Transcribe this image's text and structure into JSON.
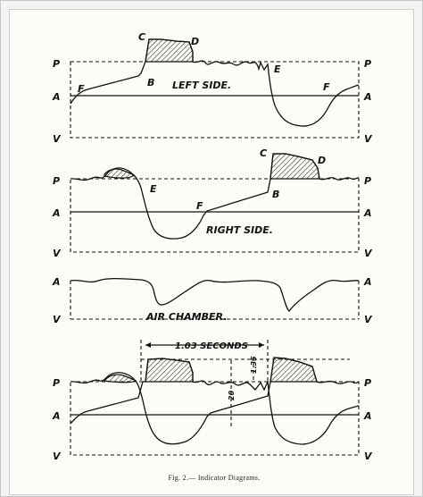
{
  "diagram1": {
    "label": "LEFT SIDE.",
    "p": "P",
    "a": "A",
    "v": "V",
    "c": "C",
    "d": "D",
    "b": "B",
    "e": "E",
    "f": "F"
  },
  "diagram2": {
    "label": "RIGHT SIDE.",
    "p": "P",
    "a": "A",
    "v": "V",
    "c1": "C",
    "d1": "D",
    "b1": "B",
    "e1": "E",
    "f1": "F"
  },
  "diagram3": {
    "label": "AIR CHAMBER.",
    "a": "A",
    "v": "V"
  },
  "diagram4": {
    "p": "P",
    "a": "A",
    "v": "V",
    "seconds": "1.03 SECONDS",
    "scale_20": "20",
    "scale_135": "1.35"
  },
  "caption": "Fig. 2.— Indicator Diagrams."
}
